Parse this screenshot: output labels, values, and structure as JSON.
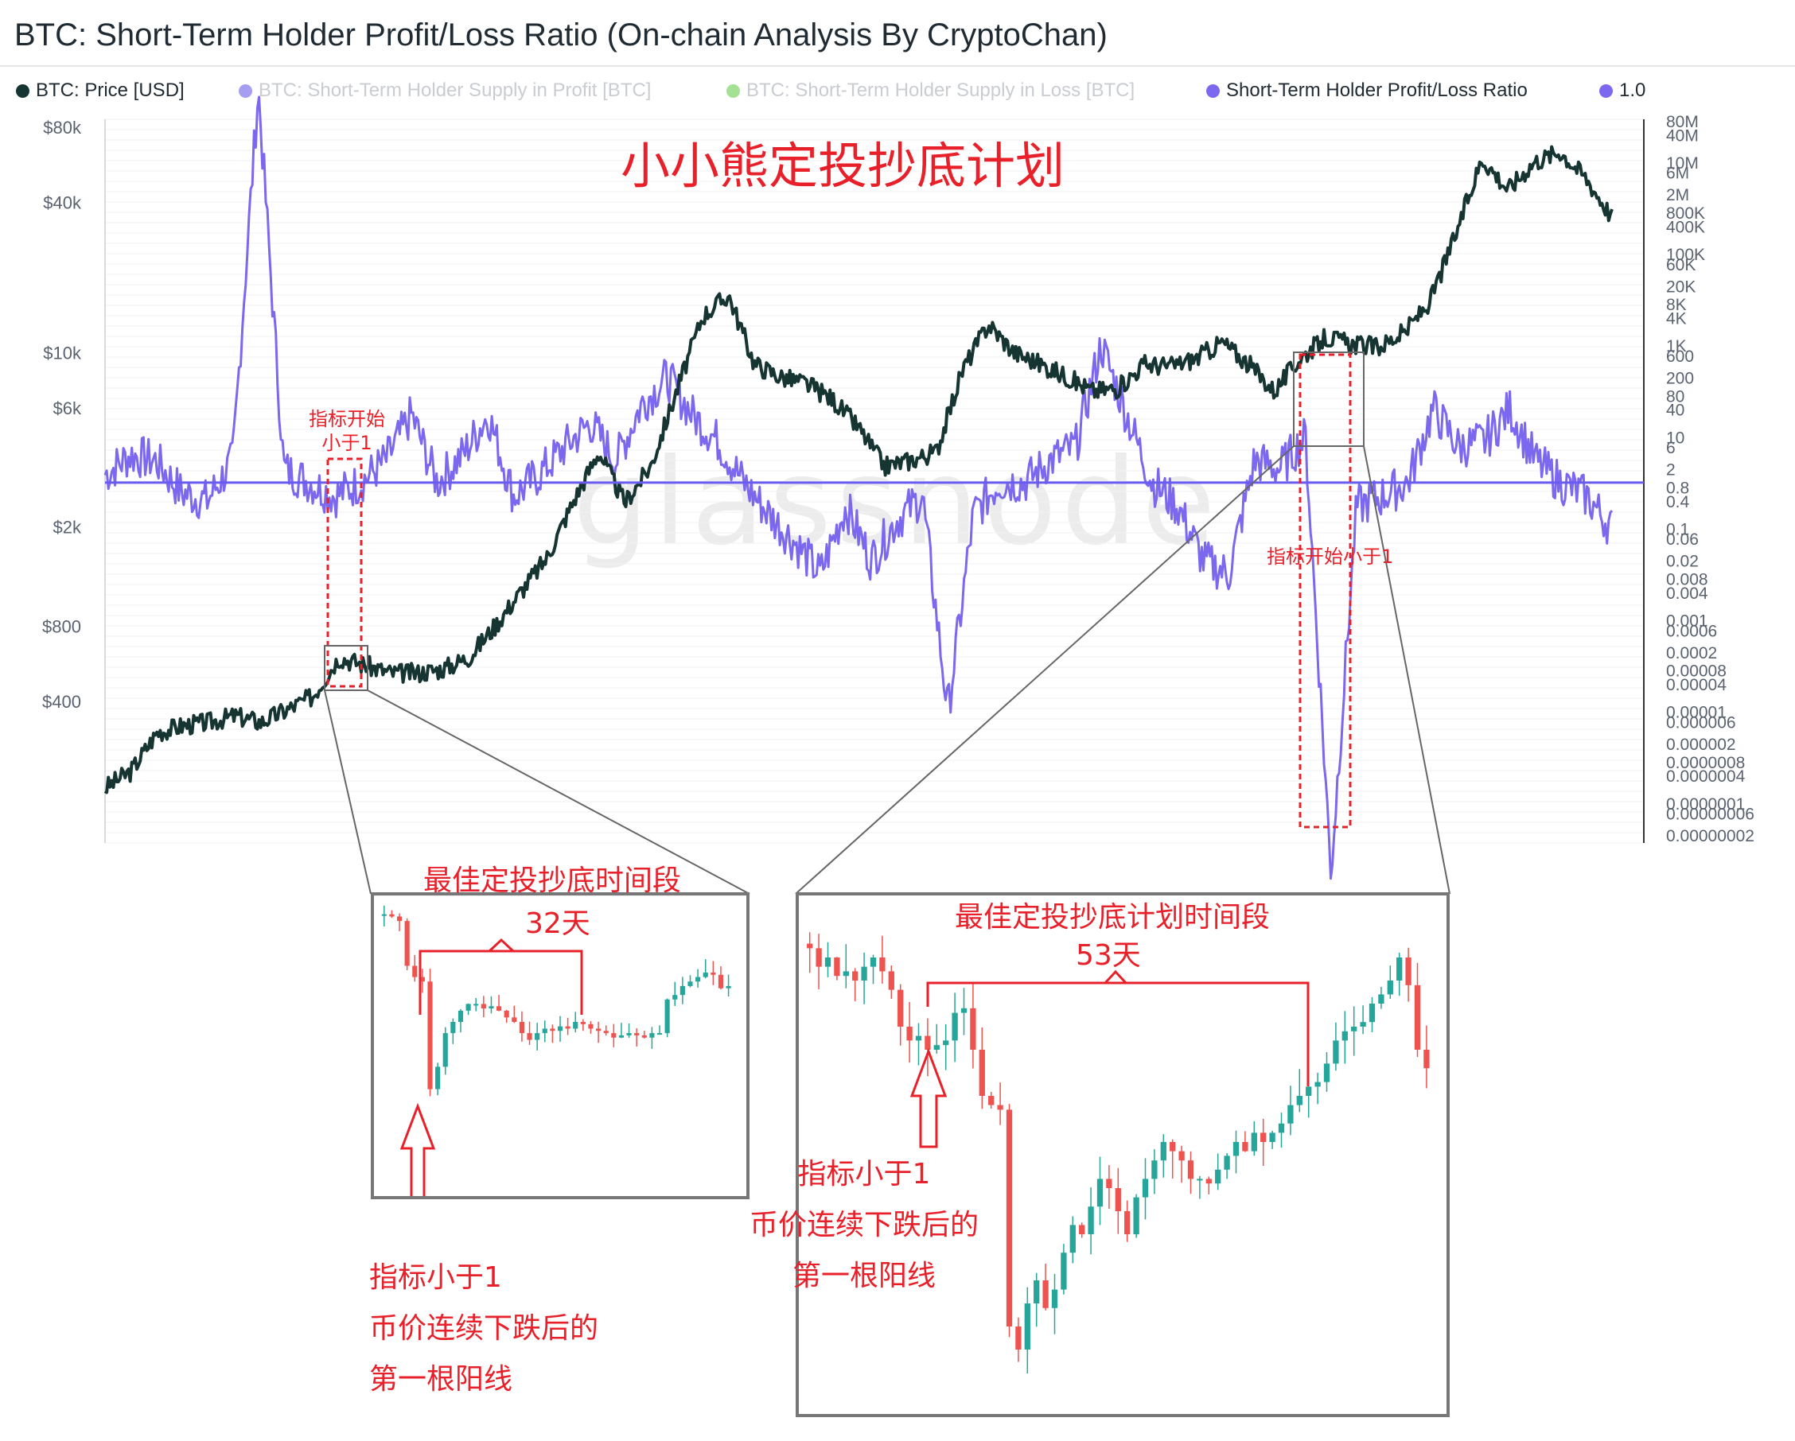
{
  "title": "BTC: Short-Term Holder Profit/Loss Ratio (On-chain Analysis By CryptoChan)",
  "legend": [
    {
      "label": "BTC: Price [USD]",
      "color": "#163532",
      "faded": false
    },
    {
      "label": "BTC: Short-Term Holder Supply in Profit [BTC]",
      "color": "#5b4ee6",
      "faded": true
    },
    {
      "label": "BTC: Short-Term Holder Supply in Loss [BTC]",
      "color": "#5ac83c",
      "faded": true
    },
    {
      "label": "Short-Term Holder Profit/Loss Ratio",
      "color": "#7b68ee",
      "faded": false
    },
    {
      "label": "1.0",
      "color": "#7b68ee",
      "faded": false
    }
  ],
  "watermark": "glassnode",
  "overlay_title": "小小熊定投抄底计划",
  "annotations": {
    "left_marker": "指标开始\n小于1",
    "right_marker": "指标开始小于1",
    "inset1_title": "最佳定投抄底时间段",
    "inset1_days": "32天",
    "inset1_note": "指标小于1\n币价连续下跌后的\n第一根阳线",
    "inset2_title": "最佳定投抄底计划时间段",
    "inset2_days": "53天",
    "inset2_note": "指标小于1\n币价连续下跌后的\n第一根阳线"
  },
  "chart_data": {
    "type": "line",
    "title": "BTC: Short-Term Holder Profit/Loss Ratio (On-chain Analysis By CryptoChan)",
    "y_left_scale": "log",
    "y_left_ticks": [
      "$80k",
      "$40k",
      "$10k",
      "$6k",
      "$2k",
      "$800",
      "$400"
    ],
    "y_right_scale": "log",
    "y_right_ticks": [
      "80M",
      "40M",
      "10M",
      "6M",
      "2M",
      "800K",
      "400K",
      "100K",
      "60K",
      "20K",
      "8K",
      "4K",
      "1K",
      "600",
      "200",
      "80",
      "40",
      "10",
      "6",
      "2",
      "0.8",
      "0.4",
      "0.1",
      "0.06",
      "0.02",
      "0.008",
      "0.004",
      "0.001",
      "0.0006",
      "0.0002",
      "0.00008",
      "0.00004",
      "0.00001",
      "0.000006",
      "0.000002",
      "0.0000008",
      "0.0000004",
      "0.0000001",
      "0.00000006",
      "0.00000002"
    ],
    "grid": true,
    "legend_position": "top",
    "series": [
      {
        "name": "BTC: Price [USD]",
        "axis": "left",
        "values": [
          180,
          210,
          300,
          320,
          330,
          350,
          330,
          370,
          420,
          600,
          560,
          520,
          520,
          540,
          600,
          800,
          1100,
          1500,
          2500,
          4000,
          2500,
          3500,
          7000,
          14000,
          17000,
          9000,
          8000,
          7500,
          6500,
          5000,
          3500,
          3700,
          4000,
          8500,
          13000,
          10000,
          9000,
          8000,
          7000,
          7200,
          9000,
          8800,
          9500,
          11000,
          9000,
          7000,
          9500,
          11500,
          10800,
          10500,
          12000,
          16000,
          30000,
          60000,
          45000,
          58000,
          64000,
          50000,
          35000
        ]
      },
      {
        "name": "Short-Term Holder Profit/Loss Ratio",
        "axis": "right",
        "values": [
          1.5,
          4,
          3,
          0.6,
          0.4,
          3,
          400000000,
          2,
          1,
          0.5,
          1,
          3,
          30,
          1,
          4,
          30,
          0.5,
          1.5,
          6,
          20,
          3,
          50,
          200,
          30,
          8,
          1,
          0.2,
          0.05,
          0.01,
          0.3,
          0.02,
          0.15,
          0.5,
          1e-05,
          0.2,
          1,
          1,
          3,
          6,
          1000,
          30,
          1,
          0.3,
          0.02,
          0.01,
          3,
          2,
          10,
          3e-09,
          0.3,
          0.5,
          1,
          40,
          6,
          8,
          40,
          3,
          1,
          0.5,
          0.1
        ]
      },
      {
        "name": "1.0",
        "axis": "right",
        "values": [
          1.0
        ]
      }
    ]
  }
}
